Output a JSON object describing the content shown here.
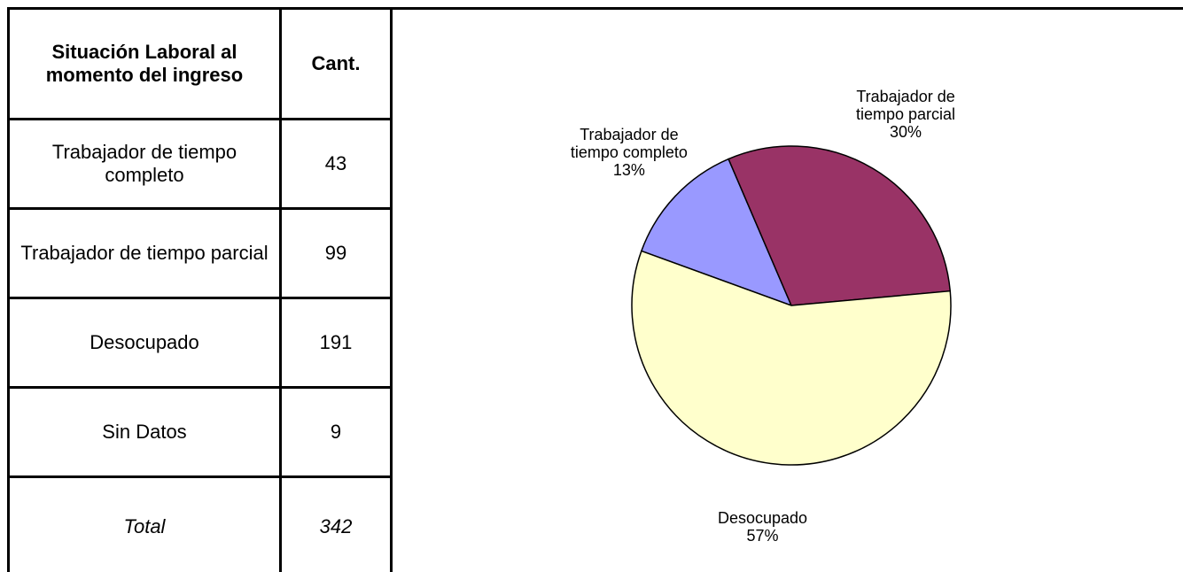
{
  "table": {
    "header": [
      "Situación Laboral al momento del ingreso",
      "Cant."
    ],
    "rows": [
      [
        "Trabajador de tiempo completo",
        43
      ],
      [
        "Trabajador de tiempo parcial",
        99
      ],
      [
        "Desocupado",
        191
      ],
      [
        "Sin Datos",
        9
      ]
    ],
    "total": [
      "Total",
      342
    ]
  },
  "chart_data": {
    "type": "pie",
    "categories": [
      "Trabajador de tiempo completo",
      "Trabajador de tiempo parcial",
      "Desocupado"
    ],
    "values": [
      13,
      30,
      57
    ],
    "value_labels": [
      "13%",
      "30%",
      "57%"
    ],
    "colors": [
      "#9999ff",
      "#993366",
      "#ffffcc"
    ]
  }
}
